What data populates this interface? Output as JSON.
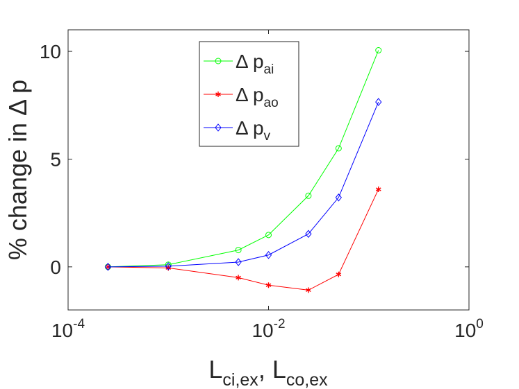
{
  "chart_data": {
    "type": "line",
    "title": "",
    "xlabel": {
      "base": "L",
      "sub1": "ci,ex",
      "sep": ", ",
      "base2": "L",
      "sub2": "co,ex"
    },
    "ylabel": {
      "text": "% change in Δ p"
    },
    "xscale": "log",
    "xlim": [
      0.0001,
      1
    ],
    "ylim": [
      -2,
      11
    ],
    "x_ticks": [
      {
        "value": 0.0001,
        "base": "10",
        "exp": "-4"
      },
      {
        "value": 0.01,
        "base": "10",
        "exp": "-2"
      },
      {
        "value": 1,
        "base": "10",
        "exp": "0"
      }
    ],
    "y_ticks": [
      {
        "value": 0,
        "label": "0"
      },
      {
        "value": 5,
        "label": "5"
      },
      {
        "value": 10,
        "label": "10"
      }
    ],
    "grid": false,
    "legend_position": "top-center",
    "x": [
      0.00025,
      0.001,
      0.005,
      0.01,
      0.025,
      0.05,
      0.125
    ],
    "series": [
      {
        "key": "pai",
        "legend_main": "Δ p",
        "legend_sub": "ai",
        "color": "#00ff00",
        "marker": "circle",
        "values": [
          0.0,
          0.1,
          0.78,
          1.48,
          3.3,
          5.5,
          10.05
        ]
      },
      {
        "key": "pao",
        "legend_main": "Δ p",
        "legend_sub": "ao",
        "color": "#ff0000",
        "marker": "asterisk",
        "values": [
          0.0,
          -0.05,
          -0.5,
          -0.85,
          -1.08,
          -0.35,
          3.6
        ]
      },
      {
        "key": "pv",
        "legend_main": "Δ p",
        "legend_sub": "v",
        "color": "#0000ff",
        "marker": "diamond",
        "values": [
          0.0,
          0.03,
          0.22,
          0.55,
          1.53,
          3.22,
          7.65
        ]
      }
    ]
  }
}
